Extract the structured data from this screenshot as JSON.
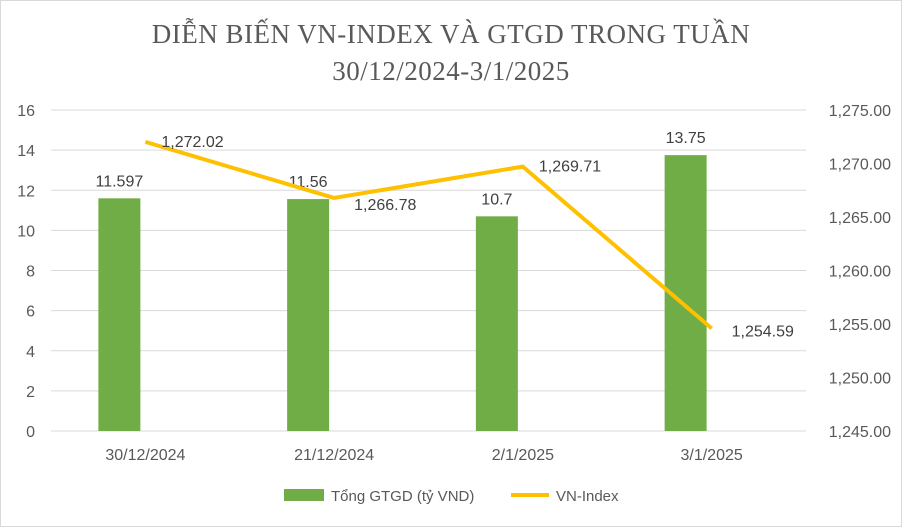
{
  "chart_data": {
    "type": "bar+line",
    "title": "DIỄN BIẾN VN-INDEX VÀ GTGD TRONG TUẦN",
    "subtitle": "30/12/2024-3/1/2025",
    "categories": [
      "30/12/2024",
      "21/12/2024",
      "2/1/2025",
      "3/1/2025"
    ],
    "series": [
      {
        "name": "Tổng GTGD (tỷ VND)",
        "type": "bar",
        "axis": "left",
        "color": "#70ad47",
        "values": [
          11.597,
          11.56,
          10.7,
          13.75
        ],
        "labels": [
          "11.597",
          "11.56",
          "10.7",
          "13.75"
        ]
      },
      {
        "name": "VN-Index",
        "type": "line",
        "axis": "right",
        "color": "#ffc000",
        "values": [
          1272.02,
          1266.78,
          1269.71,
          1254.59
        ],
        "labels": [
          "1,272.02",
          "1,266.78",
          "1,269.71",
          "1,254.59"
        ]
      }
    ],
    "ylim_left": [
      0,
      16
    ],
    "yticks_left": [
      "0",
      "2",
      "4",
      "6",
      "8",
      "10",
      "12",
      "14",
      "16"
    ],
    "ylim_right": [
      1245,
      1275
    ],
    "yticks_right": [
      "1,245.00",
      "1,250.00",
      "1,255.00",
      "1,260.00",
      "1,265.00",
      "1,270.00",
      "1,275.00"
    ],
    "grid": true,
    "legend": "bottom"
  }
}
